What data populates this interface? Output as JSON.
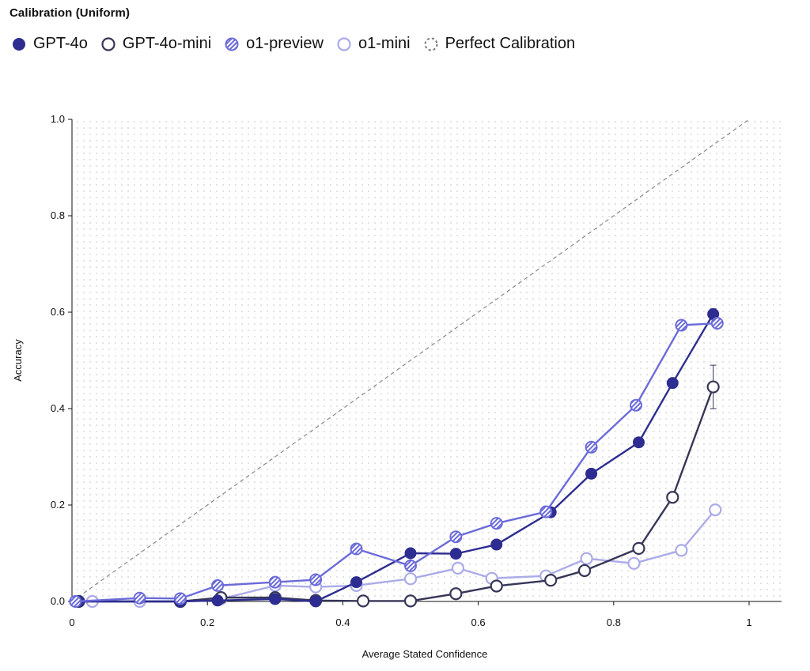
{
  "chart_data": {
    "type": "line",
    "title": "Calibration (Uniform)",
    "xlabel": "Average Stated Confidence",
    "ylabel": "Accuracy",
    "xlim": [
      0,
      1
    ],
    "ylim": [
      0,
      1
    ],
    "x_ticks": [
      "0",
      "0.2",
      "0.4",
      "0.6",
      "0.8",
      "1"
    ],
    "y_ticks": [
      "0.0",
      "0.2",
      "0.4",
      "0.6",
      "0.8",
      "1.0"
    ],
    "background": "dotted-grid",
    "legend_position": "top-left",
    "reference_line": {
      "name": "Perfect Calibration",
      "points": [
        [
          0,
          0
        ],
        [
          1,
          1
        ]
      ],
      "color": "#888888",
      "style": "dashed"
    },
    "series": [
      {
        "name": "o1-mini",
        "marker": "hollow",
        "color": "#ABABE8",
        "x": [
          0.03,
          0.1,
          0.16,
          0.22,
          0.3,
          0.36,
          0.42,
          0.5,
          0.57,
          0.62,
          0.7,
          0.76,
          0.83,
          0.9,
          0.95
        ],
        "y": [
          0.0,
          0.0,
          0.0,
          0.005,
          0.033,
          0.03,
          0.033,
          0.047,
          0.069,
          0.048,
          0.053,
          0.089,
          0.079,
          0.106,
          0.19
        ]
      },
      {
        "name": "GPT-4o-mini",
        "marker": "hollow",
        "color": "#363657",
        "x": [
          0.01,
          0.16,
          0.22,
          0.3,
          0.36,
          0.43,
          0.5,
          0.567,
          0.627,
          0.707,
          0.757,
          0.837,
          0.887,
          0.947
        ],
        "y": [
          0.0,
          0.0,
          0.008,
          0.008,
          0.002,
          0.001,
          0.001,
          0.016,
          0.032,
          0.044,
          0.064,
          0.11,
          0.216,
          0.445
        ],
        "error_bars": [
          {
            "x": 0.947,
            "low": 0.4,
            "high": 0.49
          }
        ]
      },
      {
        "name": "GPT-4o",
        "marker": "filled",
        "color": "#2D2D91",
        "x": [
          0.01,
          0.16,
          0.215,
          0.3,
          0.36,
          0.42,
          0.5,
          0.567,
          0.627,
          0.707,
          0.767,
          0.837,
          0.887,
          0.947
        ],
        "y": [
          0.0,
          0.0,
          0.002,
          0.005,
          0.0,
          0.04,
          0.1,
          0.099,
          0.118,
          0.185,
          0.265,
          0.33,
          0.453,
          0.596
        ],
        "error_bars": [
          {
            "x": 0.947,
            "low": 0.585,
            "high": 0.607
          }
        ]
      },
      {
        "name": "o1-preview",
        "marker": "hatched",
        "color": "#6B6BD9",
        "x": [
          0.005,
          0.1,
          0.16,
          0.215,
          0.3,
          0.36,
          0.42,
          0.5,
          0.567,
          0.627,
          0.7,
          0.767,
          0.833,
          0.9,
          0.953
        ],
        "y": [
          0.0,
          0.007,
          0.006,
          0.033,
          0.04,
          0.045,
          0.109,
          0.074,
          0.134,
          0.162,
          0.186,
          0.32,
          0.407,
          0.573,
          0.577
        ]
      }
    ]
  },
  "legend": [
    {
      "label": "GPT-4o",
      "marker": "filled",
      "color": "#2D2D91"
    },
    {
      "label": "GPT-4o-mini",
      "marker": "hollow",
      "color": "#363657"
    },
    {
      "label": "o1-preview",
      "marker": "hatched",
      "color": "#6B6BD9"
    },
    {
      "label": "o1-mini",
      "marker": "hollow",
      "color": "#ABABE8"
    },
    {
      "label": "Perfect Calibration",
      "marker": "dashed-ring",
      "color": "#777777"
    }
  ]
}
